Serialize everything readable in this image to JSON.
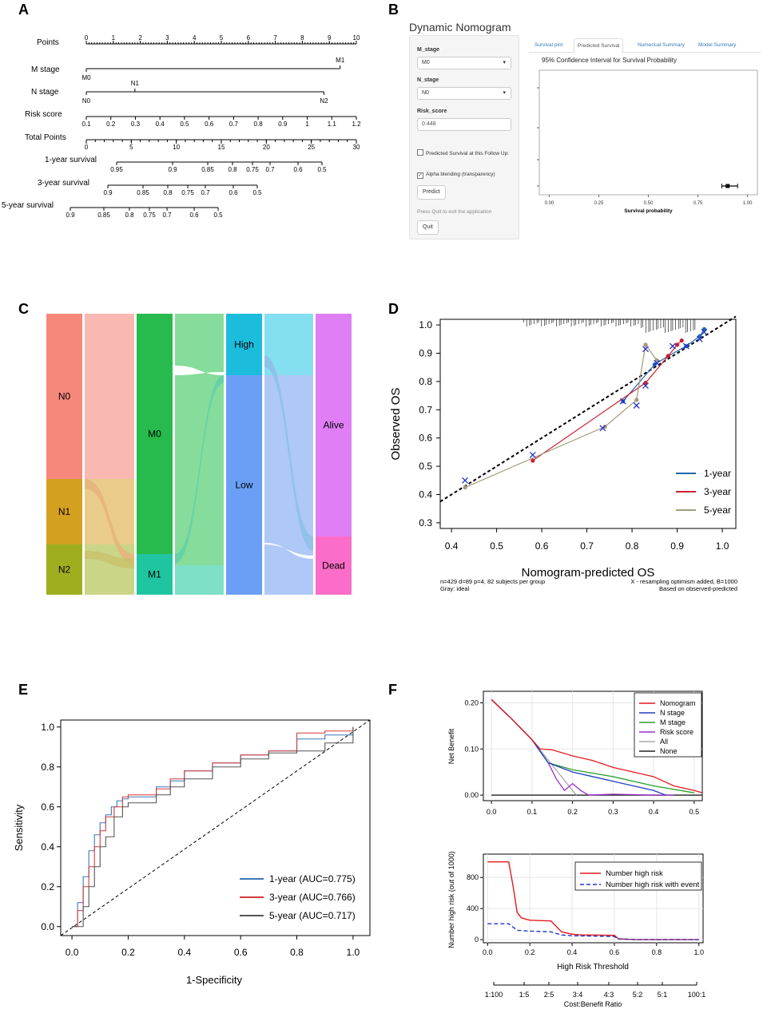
{
  "panels": {
    "A": "A",
    "B": "B",
    "C": "C",
    "D": "D",
    "E": "E",
    "F": "F"
  },
  "nomogram": {
    "rows": {
      "points": "Points",
      "m_stage": "M  stage",
      "n_stage": "N  stage",
      "risk_score": "Risk  score",
      "total_points": "Total Points",
      "surv1": "1-year survival",
      "surv3": "3-year survival",
      "surv5": "5-year survival"
    },
    "points_ticks": [
      "0",
      "1",
      "2",
      "3",
      "4",
      "5",
      "6",
      "7",
      "8",
      "9",
      "10"
    ],
    "m_stage_labels": [
      "M0",
      "M1"
    ],
    "n_stage_labels": [
      "N0",
      "N1",
      "N2"
    ],
    "risk_ticks": [
      "0.1",
      "0.2",
      "0.3",
      "0.4",
      "0.5",
      "0.6",
      "0.7",
      "0.8",
      "0.9",
      "1",
      "1.1",
      "1.2"
    ],
    "total_ticks": [
      "0",
      "5",
      "10",
      "15",
      "20",
      "25",
      "30"
    ],
    "surv1_ticks": [
      "0.95",
      "0.9",
      "0.85",
      "0.8",
      "0.75",
      "0.7",
      "0.6",
      "0.5"
    ],
    "surv3_ticks": [
      "0.9",
      "0.85",
      "0.8",
      "0.75",
      "0.7",
      "0.6",
      "0.5"
    ],
    "surv5_ticks": [
      "0.9",
      "0.85",
      "0.8",
      "0.75",
      "0.7",
      "0.6",
      "0.5"
    ]
  },
  "shiny": {
    "title": "Dynamic Nomogram",
    "m_stage_label": "M_stage",
    "m_stage_value": "M0",
    "n_stage_label": "N_stage",
    "n_stage_value": "N0",
    "risk_label": "Risk_score",
    "risk_value": "0.448",
    "check1": "Predicted Survival at this Follow Up:",
    "check2": "Alpha blending (transparency)",
    "predict_btn": "Predict",
    "quit_note": "Press Quit to exit the application",
    "quit_btn": "Quit",
    "tabs": [
      "Survival plot",
      "Predicted Survival",
      "Numerical Summary",
      "Model Summary"
    ],
    "plot_title": "95% Confidence Interval for Survival Probability",
    "x_ticks": [
      "0.00",
      "0.25",
      "0.50",
      "0.75",
      "1.00"
    ],
    "xlabel": "Survival probability",
    "estimate": 0.9,
    "ci": [
      0.87,
      0.95
    ]
  },
  "sankey": {
    "nodes": {
      "n0": "N0",
      "n1": "N1",
      "n2": "N2",
      "m0": "M0",
      "m1": "M1",
      "high": "High",
      "low": "Low",
      "alive": "Alive",
      "dead": "Dead"
    }
  },
  "chart_data": [
    {
      "id": "D",
      "type": "line",
      "title": "",
      "xlabel": "Nomogram-predicted OS",
      "ylabel": "Observed OS",
      "xlim": [
        0.4,
        1.0
      ],
      "ylim": [
        0.3,
        1.0
      ],
      "x_ticks": [
        "0.4",
        "0.5",
        "0.6",
        "0.7",
        "0.8",
        "0.9",
        "1.0"
      ],
      "y_ticks": [
        "0.3",
        "0.4",
        "0.5",
        "0.6",
        "0.7",
        "0.8",
        "0.9",
        "1.0"
      ],
      "series": [
        {
          "name": "1-year",
          "color": "#2166ac",
          "x": [
            0.78,
            0.85,
            0.88,
            0.92,
            0.95,
            0.96
          ],
          "y": [
            0.73,
            0.86,
            0.89,
            0.925,
            0.96,
            0.985
          ]
        },
        {
          "name": "3-year",
          "color": "#cc1f2f",
          "x": [
            0.58,
            0.83,
            0.88,
            0.9,
            0.91
          ],
          "y": [
            0.52,
            0.795,
            0.89,
            0.93,
            0.945
          ]
        },
        {
          "name": "5-year",
          "color": "#a59a7a",
          "x": [
            0.43,
            0.74,
            0.81,
            0.83,
            0.855
          ],
          "y": [
            0.425,
            0.64,
            0.735,
            0.93,
            0.875
          ]
        }
      ],
      "crosses": {
        "x": [
          0.43,
          0.58,
          0.735,
          0.78,
          0.81,
          0.83,
          0.83,
          0.855,
          0.89,
          0.92,
          0.95,
          0.96
        ],
        "y": [
          0.45,
          0.54,
          0.635,
          0.73,
          0.715,
          0.785,
          0.915,
          0.865,
          0.925,
          0.925,
          0.95,
          0.975
        ]
      },
      "legend": [
        "1-year",
        "3-year",
        "5-year"
      ],
      "footnotes": {
        "left1": "n=429 d=89 p=4, 82 subjects per group",
        "left2": "Gray: ideal",
        "right1": "X - resampling optimism added, B=1000",
        "right2": "Based on observed-predicted"
      }
    },
    {
      "id": "E",
      "type": "line",
      "xlabel": "1-Specificity",
      "ylabel": "Sensitivity",
      "xlim": [
        0,
        1
      ],
      "ylim": [
        0,
        1
      ],
      "x_ticks": [
        "0.0",
        "0.2",
        "0.4",
        "0.6",
        "0.8",
        "1.0"
      ],
      "y_ticks": [
        "0.0",
        "0.2",
        "0.4",
        "0.6",
        "0.8",
        "1.0"
      ],
      "series": [
        {
          "name": "1-year (AUC=0.775)",
          "color": "#3a78b8",
          "x": [
            0,
            0.02,
            0.04,
            0.06,
            0.08,
            0.1,
            0.12,
            0.14,
            0.16,
            0.18,
            0.2,
            0.3,
            0.35,
            0.4,
            0.5,
            0.6,
            0.7,
            0.8,
            0.9,
            1.0
          ],
          "y": [
            0,
            0.12,
            0.25,
            0.38,
            0.46,
            0.52,
            0.56,
            0.6,
            0.63,
            0.64,
            0.65,
            0.7,
            0.73,
            0.78,
            0.82,
            0.86,
            0.88,
            0.94,
            0.96,
            1.0
          ]
        },
        {
          "name": "3-year (AUC=0.766)",
          "color": "#d33a3a",
          "x": [
            0,
            0.02,
            0.04,
            0.06,
            0.08,
            0.1,
            0.12,
            0.15,
            0.18,
            0.2,
            0.3,
            0.35,
            0.4,
            0.5,
            0.6,
            0.7,
            0.8,
            0.9,
            1.0
          ],
          "y": [
            0,
            0.08,
            0.2,
            0.3,
            0.4,
            0.48,
            0.55,
            0.6,
            0.65,
            0.66,
            0.69,
            0.74,
            0.78,
            0.82,
            0.86,
            0.88,
            0.97,
            0.98,
            1.0
          ]
        },
        {
          "name": "5-year (AUC=0.717)",
          "color": "#555555",
          "x": [
            0,
            0.04,
            0.06,
            0.08,
            0.1,
            0.12,
            0.15,
            0.18,
            0.2,
            0.3,
            0.35,
            0.4,
            0.5,
            0.6,
            0.7,
            0.8,
            0.9,
            1.0
          ],
          "y": [
            0,
            0.1,
            0.2,
            0.3,
            0.4,
            0.45,
            0.55,
            0.6,
            0.62,
            0.66,
            0.7,
            0.74,
            0.8,
            0.84,
            0.87,
            0.88,
            0.92,
            1.0
          ]
        }
      ],
      "legend": [
        "1-year (AUC=0.775)",
        "3-year (AUC=0.766)",
        "5-year (AUC=0.717)"
      ]
    },
    {
      "id": "F-top",
      "type": "line",
      "ylabel": "Net Benefit",
      "xlim": [
        0,
        0.52
      ],
      "ylim": [
        -0.01,
        0.22
      ],
      "x_ticks": [
        "0.0",
        "0.1",
        "0.2",
        "0.3",
        "0.4",
        "0.5"
      ],
      "y_ticks": [
        "0.00",
        "0.10",
        "0.20"
      ],
      "series": [
        {
          "name": "Nomogram",
          "color": "#e41a1c",
          "x": [
            0,
            0.05,
            0.1,
            0.12,
            0.15,
            0.2,
            0.25,
            0.3,
            0.35,
            0.4,
            0.45,
            0.5,
            0.52
          ],
          "y": [
            0.207,
            0.165,
            0.12,
            0.1,
            0.098,
            0.085,
            0.075,
            0.06,
            0.05,
            0.04,
            0.02,
            0.01,
            0.005
          ]
        },
        {
          "name": "N stage",
          "color": "#1f3fbf",
          "x": [
            0,
            0.05,
            0.1,
            0.14,
            0.2,
            0.25,
            0.3,
            0.35,
            0.4,
            0.43
          ],
          "y": [
            0.207,
            0.165,
            0.12,
            0.07,
            0.05,
            0.04,
            0.03,
            0.02,
            0.01,
            0
          ]
        },
        {
          "name": "M stage",
          "color": "#2ca02c",
          "x": [
            0,
            0.05,
            0.1,
            0.14,
            0.2,
            0.3,
            0.4,
            0.5
          ],
          "y": [
            0.207,
            0.165,
            0.12,
            0.07,
            0.055,
            0.04,
            0.02,
            0.005
          ]
        },
        {
          "name": "Risk score",
          "color": "#9932cc",
          "x": [
            0,
            0.05,
            0.1,
            0.14,
            0.16,
            0.18,
            0.2,
            0.22,
            0.24,
            0.3,
            0.4,
            0.45
          ],
          "y": [
            0.207,
            0.165,
            0.12,
            0.07,
            0.035,
            0.01,
            0.025,
            0.01,
            0.0,
            0.002,
            0.0,
            0.0
          ]
        },
        {
          "name": "All",
          "color": "#aaaaaa",
          "x": [
            0,
            0.05,
            0.1,
            0.15,
            0.2,
            0.21
          ],
          "y": [
            0.207,
            0.165,
            0.12,
            0.065,
            0.01,
            0
          ]
        },
        {
          "name": "None",
          "color": "#222222",
          "x": [
            0,
            0.52
          ],
          "y": [
            0,
            0
          ]
        }
      ],
      "legend": [
        "Nomogram",
        "N stage",
        "M stage",
        "Risk score",
        "All",
        "None"
      ]
    },
    {
      "id": "F-bottom",
      "type": "line",
      "xlabel": "High Risk Threshold",
      "ylabel": "Number high risk (out of 1000)",
      "xlim": [
        0,
        1
      ],
      "ylim": [
        0,
        1050
      ],
      "x_ticks": [
        "0.0",
        "0.2",
        "0.4",
        "0.6",
        "0.8",
        "1.0"
      ],
      "y_ticks": [
        "0",
        "400",
        "800"
      ],
      "series": [
        {
          "name": "Number high risk",
          "color": "#e41a1c",
          "dash": false,
          "x": [
            0,
            0.1,
            0.12,
            0.14,
            0.16,
            0.2,
            0.3,
            0.35,
            0.4,
            0.45,
            0.5,
            0.6,
            0.62,
            0.7,
            0.8,
            1.0
          ],
          "y": [
            1000,
            1000,
            700,
            350,
            280,
            250,
            240,
            100,
            70,
            60,
            60,
            55,
            10,
            0,
            0,
            0
          ]
        },
        {
          "name": "Number high risk with event",
          "color": "#2233cc",
          "dash": true,
          "x": [
            0,
            0.1,
            0.14,
            0.2,
            0.3,
            0.35,
            0.4,
            0.5,
            0.6,
            0.62,
            0.7,
            1.0
          ],
          "y": [
            205,
            205,
            120,
            110,
            100,
            60,
            50,
            45,
            40,
            10,
            0,
            0
          ]
        }
      ],
      "legend": [
        "Number high risk",
        "Number high risk with event"
      ],
      "cost_benefit_label": "Cost:Benefit Ratio",
      "cost_benefit_ticks": [
        "1:100",
        "1:5",
        "2:5",
        "3:4",
        "4:3",
        "5:2",
        "5:1",
        "100:1"
      ]
    }
  ]
}
